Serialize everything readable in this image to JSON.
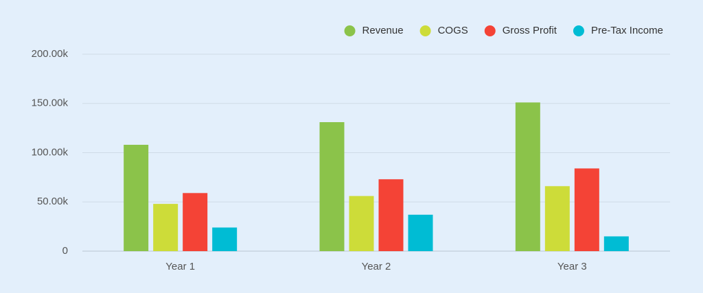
{
  "chart_data": {
    "type": "bar",
    "categories": [
      "Year 1",
      "Year 2",
      "Year 3"
    ],
    "series": [
      {
        "name": "Revenue",
        "color": "#8bc34a",
        "values": [
          108000,
          131000,
          151000
        ]
      },
      {
        "name": "COGS",
        "color": "#cddc39",
        "values": [
          48000,
          56000,
          66000
        ]
      },
      {
        "name": "Gross Profit",
        "color": "#f44336",
        "values": [
          59000,
          73000,
          84000
        ]
      },
      {
        "name": "Pre-Tax Income",
        "color": "#00bcd4",
        "values": [
          24000,
          37000,
          15000
        ]
      }
    ],
    "ylim": [
      0,
      200000
    ],
    "yticks": [
      0,
      {
        "value": 50000,
        "label": "50.00k"
      },
      {
        "value": 100000,
        "label": "100.00k"
      },
      {
        "value": 150000,
        "label": "150.00k"
      },
      {
        "value": 200000,
        "label": "200.00k"
      }
    ],
    "grid": true,
    "legend": "top-right"
  }
}
